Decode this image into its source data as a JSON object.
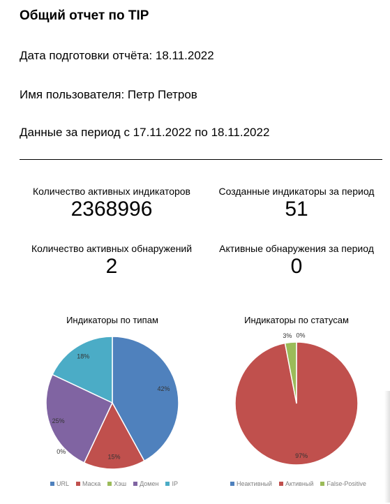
{
  "report": {
    "title": "Общий отчет по TIP",
    "prep_date": "Дата подготовки отчёта: 18.11.2022",
    "user": "Имя пользователя: Петр Петров",
    "period": "Данные за период с 17.11.2022 по 18.11.2022"
  },
  "stats": {
    "active_indicators": {
      "label": "Количество активных индикаторов",
      "value": "2368996"
    },
    "created_indicators": {
      "label": "Созданные индикаторы за период",
      "value": "51"
    },
    "active_detections": {
      "label": "Количество активных обнаружений",
      "value": "2"
    },
    "period_detections": {
      "label": "Активные обнаружения за период",
      "value": "0"
    }
  },
  "chart_data": [
    {
      "type": "pie",
      "title": "Индикаторы по типам",
      "categories": [
        "URL",
        "Маска",
        "Хэш",
        "Домен",
        "IP"
      ],
      "values": [
        42,
        15,
        0,
        25,
        18
      ],
      "labels": [
        "42%",
        "15%",
        "0%",
        "25%",
        "18%"
      ],
      "colors": [
        "#4f81bd",
        "#c0504d",
        "#9bbb59",
        "#8064a2",
        "#4bacc6"
      ],
      "legend": "bottom"
    },
    {
      "type": "pie",
      "title": "Индикаторы по статусам",
      "categories": [
        "Неактивный",
        "Активный",
        "False-Positive"
      ],
      "values": [
        0,
        97,
        3
      ],
      "labels": [
        "0%",
        "97%",
        "3%"
      ],
      "colors": [
        "#4f81bd",
        "#c0504d",
        "#9bbb59"
      ],
      "legend": "bottom"
    }
  ]
}
